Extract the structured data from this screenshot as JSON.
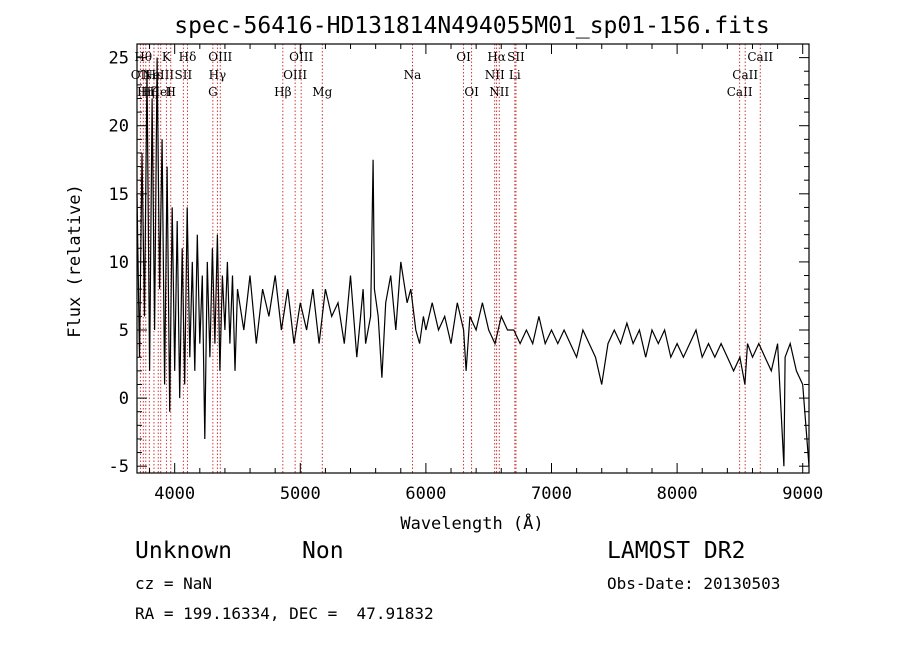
{
  "chart_data": {
    "type": "line",
    "title": "spec-56416-HD131814N494055M01_sp01-156.fits",
    "xlabel": "Wavelength (Å)",
    "ylabel": "Flux (relative)",
    "xlim": [
      3700,
      9050
    ],
    "ylim": [
      -5.5,
      26
    ],
    "xticks": [
      4000,
      5000,
      6000,
      7000,
      8000,
      9000
    ],
    "yticks": [
      -5,
      0,
      5,
      10,
      15,
      20,
      25
    ],
    "grid": false,
    "series": [
      {
        "points": [
          [
            3700,
            15
          ],
          [
            3720,
            3
          ],
          [
            3740,
            18
          ],
          [
            3760,
            6
          ],
          [
            3780,
            24
          ],
          [
            3800,
            2
          ],
          [
            3820,
            22
          ],
          [
            3840,
            5
          ],
          [
            3860,
            25
          ],
          [
            3880,
            8
          ],
          [
            3900,
            19
          ],
          [
            3920,
            1
          ],
          [
            3940,
            17
          ],
          [
            3960,
            -1
          ],
          [
            3980,
            14
          ],
          [
            4000,
            2
          ],
          [
            4020,
            13
          ],
          [
            4040,
            0
          ],
          [
            4060,
            11
          ],
          [
            4080,
            1
          ],
          [
            4100,
            14
          ],
          [
            4120,
            3
          ],
          [
            4140,
            10
          ],
          [
            4160,
            2
          ],
          [
            4180,
            12
          ],
          [
            4200,
            4
          ],
          [
            4220,
            9
          ],
          [
            4240,
            -3
          ],
          [
            4260,
            10
          ],
          [
            4280,
            3
          ],
          [
            4300,
            11
          ],
          [
            4320,
            4
          ],
          [
            4340,
            12
          ],
          [
            4360,
            2
          ],
          [
            4380,
            9
          ],
          [
            4400,
            5
          ],
          [
            4420,
            10
          ],
          [
            4440,
            4
          ],
          [
            4460,
            9
          ],
          [
            4480,
            2
          ],
          [
            4500,
            8
          ],
          [
            4550,
            5
          ],
          [
            4600,
            9
          ],
          [
            4650,
            4
          ],
          [
            4700,
            8
          ],
          [
            4750,
            6
          ],
          [
            4800,
            9
          ],
          [
            4850,
            5
          ],
          [
            4900,
            8
          ],
          [
            4950,
            4
          ],
          [
            5000,
            7
          ],
          [
            5050,
            5
          ],
          [
            5100,
            8
          ],
          [
            5150,
            4
          ],
          [
            5200,
            8
          ],
          [
            5250,
            6
          ],
          [
            5300,
            7
          ],
          [
            5350,
            4
          ],
          [
            5400,
            9
          ],
          [
            5450,
            3
          ],
          [
            5500,
            8
          ],
          [
            5520,
            4
          ],
          [
            5560,
            6
          ],
          [
            5580,
            17.5
          ],
          [
            5590,
            8
          ],
          [
            5620,
            6
          ],
          [
            5650,
            1.5
          ],
          [
            5680,
            7
          ],
          [
            5720,
            9
          ],
          [
            5760,
            5
          ],
          [
            5800,
            10
          ],
          [
            5850,
            7
          ],
          [
            5880,
            8
          ],
          [
            5920,
            5
          ],
          [
            5950,
            4
          ],
          [
            5980,
            6
          ],
          [
            6000,
            5
          ],
          [
            6050,
            7
          ],
          [
            6100,
            5
          ],
          [
            6150,
            6
          ],
          [
            6200,
            4
          ],
          [
            6250,
            7
          ],
          [
            6300,
            5
          ],
          [
            6320,
            2
          ],
          [
            6350,
            6
          ],
          [
            6400,
            5
          ],
          [
            6450,
            7
          ],
          [
            6500,
            5
          ],
          [
            6550,
            4
          ],
          [
            6600,
            6
          ],
          [
            6650,
            5
          ],
          [
            6700,
            5
          ],
          [
            6750,
            4
          ],
          [
            6800,
            5
          ],
          [
            6850,
            4
          ],
          [
            6900,
            6
          ],
          [
            6950,
            4
          ],
          [
            7000,
            5
          ],
          [
            7050,
            4
          ],
          [
            7100,
            5
          ],
          [
            7150,
            4
          ],
          [
            7200,
            3
          ],
          [
            7250,
            5
          ],
          [
            7300,
            4
          ],
          [
            7350,
            3
          ],
          [
            7400,
            1
          ],
          [
            7450,
            4
          ],
          [
            7500,
            5
          ],
          [
            7550,
            4
          ],
          [
            7600,
            5.5
          ],
          [
            7650,
            4
          ],
          [
            7700,
            5
          ],
          [
            7750,
            3
          ],
          [
            7800,
            5
          ],
          [
            7850,
            4
          ],
          [
            7900,
            5
          ],
          [
            7950,
            3
          ],
          [
            8000,
            4
          ],
          [
            8050,
            3
          ],
          [
            8100,
            4
          ],
          [
            8150,
            5
          ],
          [
            8200,
            3
          ],
          [
            8250,
            4
          ],
          [
            8300,
            3
          ],
          [
            8350,
            4
          ],
          [
            8400,
            3
          ],
          [
            8450,
            2
          ],
          [
            8500,
            3
          ],
          [
            8540,
            1
          ],
          [
            8560,
            4
          ],
          [
            8600,
            3
          ],
          [
            8650,
            4
          ],
          [
            8700,
            3
          ],
          [
            8750,
            2
          ],
          [
            8800,
            4
          ],
          [
            8850,
            -5
          ],
          [
            8860,
            3
          ],
          [
            8900,
            4
          ],
          [
            8950,
            2
          ],
          [
            9000,
            1
          ],
          [
            9050,
            -5
          ]
        ]
      }
    ],
    "lines": [
      {
        "wavelength": 3727,
        "label": "OII",
        "row": 1
      },
      {
        "wavelength": 3750,
        "label": "Hθ",
        "row": 0
      },
      {
        "wavelength": 3770,
        "label": "Hη",
        "row": 2
      },
      {
        "wavelength": 3798,
        "label": "Hζ",
        "row": 2
      },
      {
        "wavelength": 3835,
        "label": "Hε",
        "row": 1
      },
      {
        "wavelength": 3869,
        "label": "NeIII",
        "row": 1
      },
      {
        "wavelength": 3889,
        "label": "HeI",
        "row": 2
      },
      {
        "wavelength": 3934,
        "label": "K",
        "row": 0
      },
      {
        "wavelength": 3969,
        "label": "H",
        "row": 2
      },
      {
        "wavelength": 4069,
        "label": "SII",
        "row": 1
      },
      {
        "wavelength": 4102,
        "label": "Hδ",
        "row": 0
      },
      {
        "wavelength": 4304,
        "label": "G",
        "row": 2
      },
      {
        "wavelength": 4340,
        "label": "Hγ",
        "row": 1
      },
      {
        "wavelength": 4363,
        "label": "OIII",
        "row": 0
      },
      {
        "wavelength": 4861,
        "label": "Hβ",
        "row": 2
      },
      {
        "wavelength": 4959,
        "label": "OIII",
        "row": 1
      },
      {
        "wavelength": 5007,
        "label": "OIII",
        "row": 0
      },
      {
        "wavelength": 5175,
        "label": "Mg",
        "row": 2
      },
      {
        "wavelength": 5893,
        "label": "Na",
        "row": 1
      },
      {
        "wavelength": 6300,
        "label": "OI",
        "row": 0
      },
      {
        "wavelength": 6364,
        "label": "OI",
        "row": 2
      },
      {
        "wavelength": 6548,
        "label": "NII",
        "row": 1
      },
      {
        "wavelength": 6563,
        "label": "Hα",
        "row": 0
      },
      {
        "wavelength": 6584,
        "label": "NII",
        "row": 2
      },
      {
        "wavelength": 6708,
        "label": "Li",
        "row": 1
      },
      {
        "wavelength": 6717,
        "label": "SII",
        "row": 0
      },
      {
        "wavelength": 8498,
        "label": "CaII",
        "row": 2
      },
      {
        "wavelength": 8542,
        "label": "CaII",
        "row": 1
      },
      {
        "wavelength": 8662,
        "label": "CaII",
        "row": 0
      }
    ],
    "colors": {
      "spectrum": "#000000",
      "lines": "#cc2222",
      "text": "#000000"
    }
  },
  "info": {
    "object_type": "Unknown",
    "object_class": "Non",
    "survey": "LAMOST DR2",
    "cz": "cz = NaN",
    "obs_date": "Obs-Date: 20130503",
    "coords": "RA = 199.16334, DEC =  47.91832"
  }
}
